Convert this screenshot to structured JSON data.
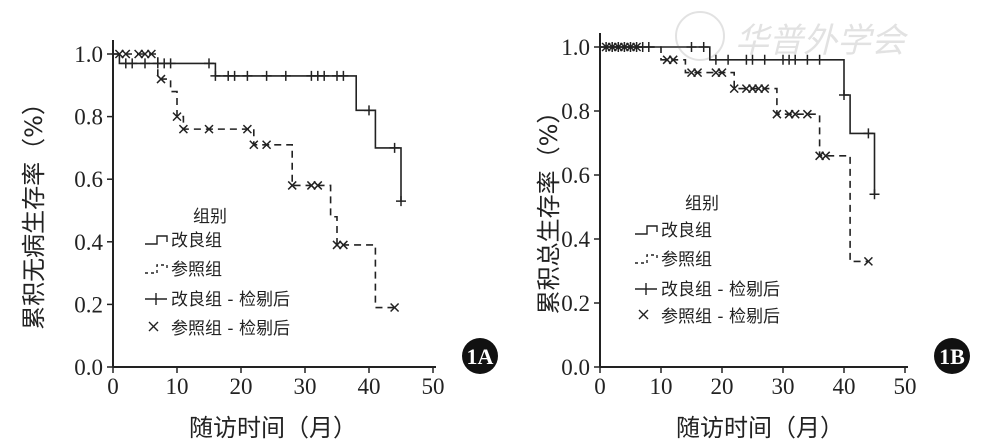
{
  "chart_data": [
    {
      "id": "1A",
      "type": "line",
      "subtype": "kaplan-meier step",
      "ylabel": "累积无病生存率（%）",
      "xlabel": "随访时间（月）",
      "xlim": [
        0,
        50
      ],
      "ylim": [
        0,
        1.0
      ],
      "xticks": [
        "0",
        "10",
        "20",
        "30",
        "40",
        "50"
      ],
      "yticks": [
        "0.0",
        "0.2",
        "0.4",
        "0.6",
        "0.8",
        "1.0"
      ],
      "legend": {
        "title": "组别",
        "position": "center-left",
        "entries": [
          "改良组",
          "参照组",
          "改良组 - 检剔后",
          "参照组 - 检剔后"
        ]
      },
      "series": [
        {
          "name": "改良组",
          "style": "solid",
          "steps": [
            [
              0,
              1.0
            ],
            [
              1,
              0.97
            ],
            [
              16,
              0.93
            ],
            [
              38,
              0.82
            ],
            [
              41,
              0.7
            ],
            [
              45,
              0.53
            ]
          ],
          "censored": [
            2,
            3,
            5,
            7,
            8,
            9,
            15,
            16,
            18,
            19,
            21,
            24,
            27,
            31,
            32,
            33,
            35,
            36,
            40,
            44,
            45
          ]
        },
        {
          "name": "参照组",
          "style": "dashed",
          "steps": [
            [
              0,
              1.0
            ],
            [
              7,
              0.92
            ],
            [
              9,
              0.88
            ],
            [
              10,
              0.8
            ],
            [
              11,
              0.76
            ],
            [
              22,
              0.71
            ],
            [
              28,
              0.58
            ],
            [
              34,
              0.48
            ],
            [
              35,
              0.39
            ],
            [
              41,
              0.19
            ]
          ],
          "censored": [
            1,
            2,
            4,
            5,
            6,
            7.5,
            10,
            11,
            15,
            21,
            22,
            24,
            28,
            31,
            32,
            35,
            36,
            44
          ]
        }
      ]
    },
    {
      "id": "1B",
      "type": "line",
      "subtype": "kaplan-meier step",
      "ylabel": "累积总生存率（%）",
      "xlabel": "随访时间（月）",
      "xlim": [
        0,
        50
      ],
      "ylim": [
        0,
        1.0
      ],
      "xticks": [
        "0",
        "10",
        "20",
        "30",
        "40",
        "50"
      ],
      "yticks": [
        "0.0",
        "0.2",
        "0.4",
        "0.6",
        "0.8",
        "1.0"
      ],
      "legend": {
        "title": "组别",
        "position": "center-left",
        "entries": [
          "改良组",
          "参照组",
          "改良组 - 检剔后",
          "参照组 - 检剔后"
        ]
      },
      "series": [
        {
          "name": "改良组",
          "style": "solid",
          "steps": [
            [
              0,
              1.0
            ],
            [
              18,
              0.96
            ],
            [
              40,
              0.85
            ],
            [
              41,
              0.73
            ],
            [
              45,
              0.54
            ]
          ],
          "censored": [
            1,
            2,
            3,
            4,
            5,
            6,
            7,
            8,
            15,
            17,
            19,
            21,
            24,
            25,
            27,
            30,
            31,
            32,
            34,
            36,
            40,
            44,
            45
          ]
        },
        {
          "name": "参照组",
          "style": "dashed",
          "steps": [
            [
              0,
              1.0
            ],
            [
              10,
              0.96
            ],
            [
              14,
              0.92
            ],
            [
              22,
              0.87
            ],
            [
              29,
              0.79
            ],
            [
              36,
              0.66
            ],
            [
              41,
              0.33
            ]
          ],
          "censored": [
            1,
            2,
            3,
            4,
            5,
            6,
            11,
            12,
            15,
            16,
            19,
            20,
            22,
            24,
            25,
            26,
            27,
            29,
            31,
            32,
            34,
            36,
            37,
            44
          ]
        }
      ]
    }
  ],
  "watermark": "中华普外学会"
}
